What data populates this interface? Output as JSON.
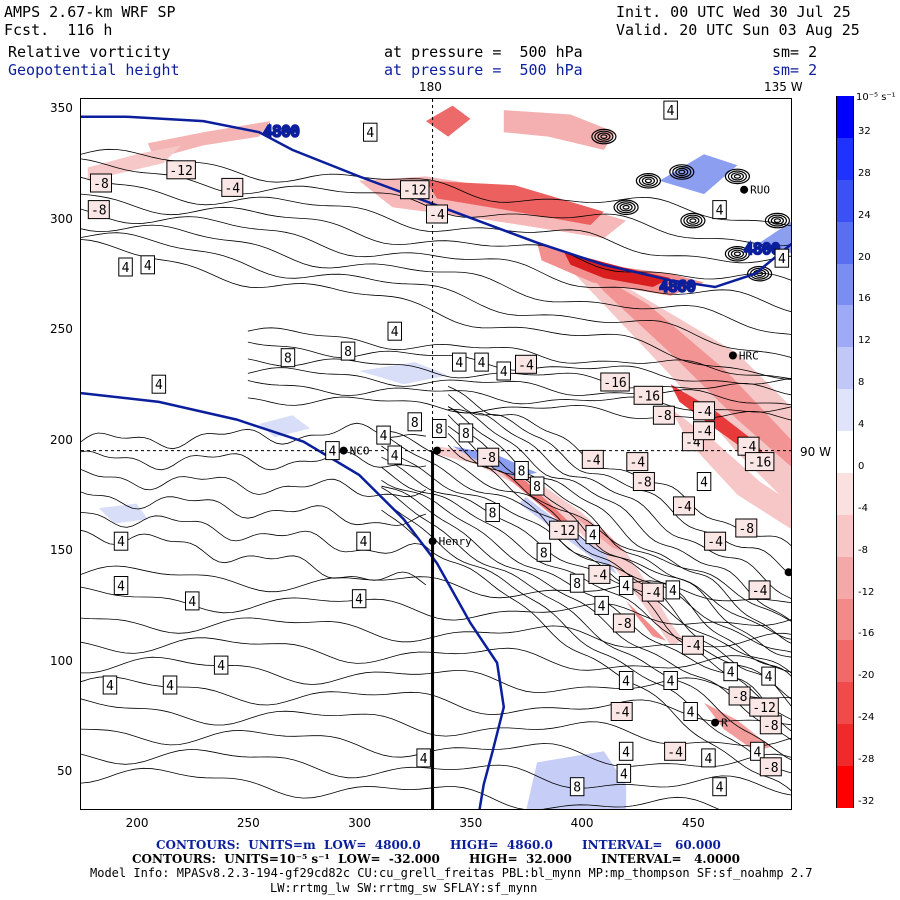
{
  "header": {
    "model": "AMPS 2.67-km WRF SP",
    "forecast": "Fcst.  116 h",
    "init": "Init. 00 UTC Wed 30 Jul 25",
    "valid": "Valid. 20 UTC Sun 03 Aug 25",
    "field1_name": "Relative vorticity",
    "field1_level": "at pressure =  500 hPa",
    "field1_sm": "sm= 2",
    "field2_name": "Geopotential height",
    "field2_level": "at pressure =  500 hPa",
    "field2_sm": "sm= 2"
  },
  "map": {
    "lon_labels": [
      "180",
      "135 W",
      "90 W"
    ],
    "stations": [
      "NCO",
      "Henry",
      "HRC",
      "RUO",
      "R"
    ],
    "height_labels": [
      "4800",
      "4860",
      "4800"
    ],
    "colors": {
      "height_contour": "#0b1e9c",
      "positive": "#1a3cf0",
      "negative": "#f01414"
    }
  },
  "chart_data": {
    "type": "contour",
    "x_ticks": [
      "200",
      "250",
      "300",
      "350",
      "400",
      "450"
    ],
    "y_ticks": [
      "350",
      "300",
      "250",
      "200",
      "150",
      "100",
      "50"
    ],
    "xlim": [
      175,
      495
    ],
    "ylim": [
      33,
      355
    ],
    "vorticity_labels": [
      "4",
      "-4",
      "8",
      "-8",
      "-12",
      "-16"
    ],
    "colorbar": {
      "unit": "10⁻⁵ s⁻¹",
      "levels": [
        "32",
        "28",
        "24",
        "20",
        "16",
        "12",
        "8",
        "4",
        "0",
        "-4",
        "-8",
        "-12",
        "-16",
        "-20",
        "-24",
        "-28",
        "-32"
      ],
      "colors": [
        "#0000ff",
        "#1f33ff",
        "#3a52f5",
        "#5a6ef0",
        "#7b8cf2",
        "#9eaaf5",
        "#c1c8f8",
        "#e0e4fb",
        "#ffffff",
        "#fbe0e0",
        "#f8c6c6",
        "#f5a8a8",
        "#f28a8a",
        "#f06a6a",
        "#f04a4a",
        "#f02a2a",
        "#ff0000"
      ]
    },
    "cross_section": {
      "x": 333,
      "y_from": 33,
      "y_to": 196
    }
  },
  "footer": {
    "line1": "CONTOURS:  UNITS=m  LOW=  4800.0       HIGH=  4860.0       INTERVAL=   60.000",
    "line2": "CONTOURS:  UNITS=10⁻⁵ s⁻¹  LOW=  -32.000       HIGH=  32.000       INTERVAL=   4.0000",
    "line3": "Model Info: MPASv8.2.3-194-gf29cd82c CU:cu_grell_freitas PBL:bl_mynn MP:mp_thompson SF:sf_noahmp 2.7",
    "line4": "LW:rrtmg_lw SW:rrtmg_sw SFLAY:sf_mynn"
  }
}
